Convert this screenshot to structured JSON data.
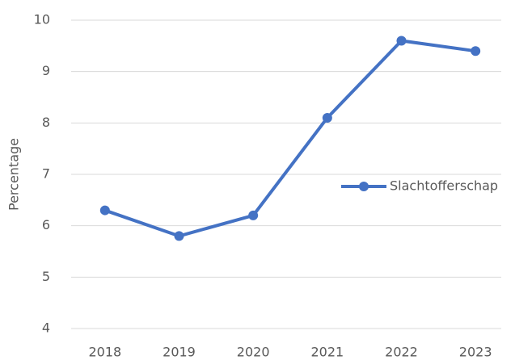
{
  "chart_data": {
    "type": "line",
    "y_label": "Percentage",
    "categories": [
      "2018",
      "2019",
      "2020",
      "2021",
      "2022",
      "2023"
    ],
    "series": [
      {
        "name": "Slachtofferschap",
        "color": "#4472c4",
        "values": [
          6.3,
          5.8,
          6.2,
          8.1,
          9.6,
          9.4
        ]
      }
    ],
    "ylim": [
      4,
      10
    ],
    "yticks": [
      4,
      5,
      6,
      7,
      8,
      9,
      10
    ],
    "grid": true,
    "legend": "right"
  }
}
